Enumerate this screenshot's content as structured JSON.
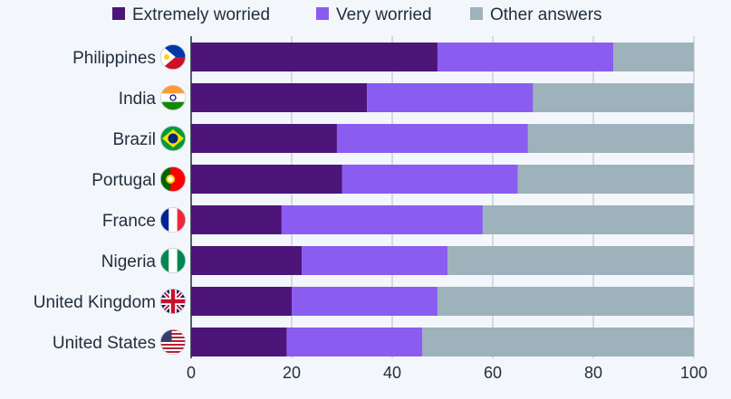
{
  "chart_data": {
    "type": "bar",
    "orientation": "horizontal",
    "stacked": true,
    "categories": [
      "Philippines",
      "India",
      "Brazil",
      "Portugal",
      "France",
      "Nigeria",
      "United Kingdom",
      "United States"
    ],
    "flags": [
      "ph",
      "in",
      "br",
      "pt",
      "fr",
      "ng",
      "gb",
      "us"
    ],
    "series": [
      {
        "name": "Extremely worried",
        "color": "#4d1479",
        "values": [
          49,
          35,
          29,
          30,
          18,
          22,
          20,
          19
        ]
      },
      {
        "name": "Very worried",
        "color": "#8a5cf0",
        "values": [
          35,
          33,
          38,
          35,
          40,
          29,
          29,
          27
        ]
      },
      {
        "name": "Other answers",
        "color": "#9db2ba",
        "values": [
          16,
          32,
          33,
          35,
          42,
          49,
          51,
          54
        ]
      }
    ],
    "xlim": [
      0,
      100
    ],
    "xticks": [
      "0",
      "20",
      "40",
      "60",
      "80",
      "100"
    ],
    "legend_position": "top",
    "grid": true
  }
}
